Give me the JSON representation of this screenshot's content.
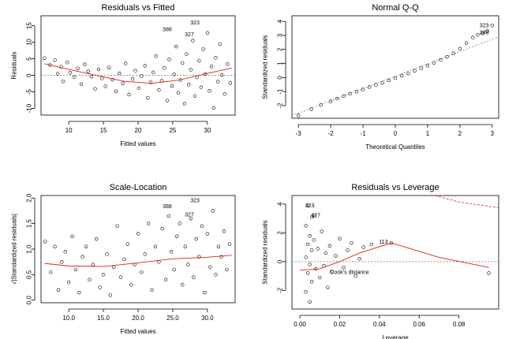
{
  "chart_data": [
    {
      "id": "residuals-vs-fitted",
      "type": "scatter",
      "title": "Residuals vs Fitted",
      "xlabel": "Fitted values",
      "ylabel": "Residuals",
      "xlim": [
        6,
        34
      ],
      "ylim": [
        -12,
        18
      ],
      "xticks": [
        10,
        15,
        20,
        25,
        30
      ],
      "yticks": [
        -10,
        -5,
        0,
        5,
        10,
        15
      ],
      "points": [
        [
          6.5,
          5.2
        ],
        [
          7.3,
          3.1
        ],
        [
          8.0,
          4.6
        ],
        [
          8.4,
          0.5
        ],
        [
          8.9,
          2.6
        ],
        [
          9.2,
          -1.8
        ],
        [
          9.8,
          3.9
        ],
        [
          10.2,
          0.8
        ],
        [
          10.8,
          -0.5
        ],
        [
          11.3,
          2.1
        ],
        [
          11.8,
          -2.7
        ],
        [
          12.3,
          3.3
        ],
        [
          12.8,
          1.2
        ],
        [
          13.3,
          -0.4
        ],
        [
          13.8,
          -4.1
        ],
        [
          14.3,
          1.8
        ],
        [
          14.8,
          -0.9
        ],
        [
          15.3,
          -3.3
        ],
        [
          15.8,
          2.4
        ],
        [
          16.3,
          -1.3
        ],
        [
          16.8,
          -4.8
        ],
        [
          17.3,
          0.6
        ],
        [
          17.8,
          -2.4
        ],
        [
          18.2,
          3.6
        ],
        [
          18.7,
          -5.8
        ],
        [
          19.2,
          -1.1
        ],
        [
          19.6,
          1.4
        ],
        [
          20.1,
          -3.9
        ],
        [
          20.5,
          -0.2
        ],
        [
          21.0,
          2.9
        ],
        [
          21.4,
          -6.8
        ],
        [
          21.8,
          -2.1
        ],
        [
          22.2,
          0.9
        ],
        [
          22.6,
          5.8
        ],
        [
          23.0,
          -4.4
        ],
        [
          23.4,
          -1.6
        ],
        [
          23.8,
          2.2
        ],
        [
          24.2,
          -7.6
        ],
        [
          24.5,
          4.8
        ],
        [
          24.9,
          -3.2
        ],
        [
          25.2,
          0.3
        ],
        [
          25.5,
          8.7
        ],
        [
          25.8,
          -5.3
        ],
        [
          26.1,
          -1.4
        ],
        [
          26.4,
          3.8
        ],
        [
          26.7,
          -8.6
        ],
        [
          27.0,
          6.4
        ],
        [
          27.3,
          -2.8
        ],
        [
          27.6,
          1.7
        ],
        [
          27.9,
          10.5
        ],
        [
          28.2,
          -6.2
        ],
        [
          28.5,
          -0.6
        ],
        [
          28.8,
          4.4
        ],
        [
          29.1,
          -3.6
        ],
        [
          29.4,
          7.9
        ],
        [
          29.7,
          0.4
        ],
        [
          30.0,
          12.8
        ],
        [
          30.3,
          -4.7
        ],
        [
          30.6,
          2.7
        ],
        [
          30.9,
          -9.8
        ],
        [
          31.2,
          5.3
        ],
        [
          31.5,
          -1.9
        ],
        [
          31.8,
          9.4
        ],
        [
          32.1,
          0.1
        ],
        [
          32.5,
          -5.6
        ],
        [
          32.9,
          3.4
        ],
        [
          33.3,
          -2.3
        ]
      ],
      "smooth": [
        [
          6.5,
          3.5
        ],
        [
          10,
          1.8
        ],
        [
          14,
          0.0
        ],
        [
          18,
          -1.8
        ],
        [
          22,
          -2.4
        ],
        [
          26,
          -1.4
        ],
        [
          30,
          0.6
        ],
        [
          33.5,
          2.2
        ]
      ],
      "annotations": [
        {
          "label": "388",
          "x": 24.2,
          "y": 13.8
        },
        {
          "label": "323",
          "x": 28.2,
          "y": 15.9
        },
        {
          "label": "327",
          "x": 27.4,
          "y": 12.3
        }
      ]
    },
    {
      "id": "normal-qq",
      "type": "scatter",
      "title": "Normal Q-Q",
      "xlabel": "Theoretical Quantiles",
      "ylabel": "Standardized residuals",
      "xlim": [
        -3.2,
        3.2
      ],
      "ylim": [
        -2.9,
        4.4
      ],
      "xticks": [
        -3,
        -2,
        -1,
        0,
        1,
        2,
        3
      ],
      "yticks": [
        -2,
        -1,
        0,
        1,
        2,
        3,
        4
      ],
      "points": [
        [
          -3.0,
          -2.7
        ],
        [
          -2.6,
          -2.25
        ],
        [
          -2.3,
          -1.95
        ],
        [
          -2.0,
          -1.7
        ],
        [
          -1.8,
          -1.5
        ],
        [
          -1.6,
          -1.32
        ],
        [
          -1.4,
          -1.15
        ],
        [
          -1.2,
          -1.0
        ],
        [
          -1.0,
          -0.85
        ],
        [
          -0.8,
          -0.68
        ],
        [
          -0.6,
          -0.52
        ],
        [
          -0.4,
          -0.36
        ],
        [
          -0.2,
          -0.2
        ],
        [
          0.0,
          -0.04
        ],
        [
          0.2,
          0.13
        ],
        [
          0.4,
          0.3
        ],
        [
          0.6,
          0.48
        ],
        [
          0.8,
          0.66
        ],
        [
          1.0,
          0.85
        ],
        [
          1.2,
          1.05
        ],
        [
          1.4,
          1.25
        ],
        [
          1.6,
          1.47
        ],
        [
          1.8,
          1.72
        ],
        [
          2.0,
          2.05
        ],
        [
          2.2,
          2.45
        ],
        [
          2.4,
          2.85
        ],
        [
          2.55,
          3.05
        ],
        [
          2.7,
          3.15
        ],
        [
          2.85,
          3.3
        ],
        [
          3.0,
          3.7
        ]
      ],
      "reference": [
        [
          -3.2,
          -2.7
        ],
        [
          3.2,
          2.9
        ]
      ],
      "annotations": [
        {
          "label": "323",
          "x": 2.75,
          "y": 3.7
        },
        {
          "label": "388",
          "x": 2.75,
          "y": 3.2
        }
      ]
    },
    {
      "id": "scale-location",
      "type": "scatter",
      "title": "Scale-Location",
      "xlabel": "Fitted values",
      "ylabel": "√|Standardized residuals|",
      "xlim": [
        6,
        34
      ],
      "ylim": [
        -0.05,
        2.05
      ],
      "xticks": [
        10,
        15,
        20,
        25,
        30
      ],
      "yticks": [
        0.0,
        0.5,
        1.0,
        1.5,
        2.0
      ],
      "points": [
        [
          6.6,
          1.15
        ],
        [
          7.4,
          0.55
        ],
        [
          8.0,
          1.05
        ],
        [
          8.5,
          0.2
        ],
        [
          9.0,
          0.75
        ],
        [
          9.5,
          0.95
        ],
        [
          10.0,
          0.35
        ],
        [
          10.5,
          1.25
        ],
        [
          11.0,
          0.6
        ],
        [
          11.5,
          0.15
        ],
        [
          12.0,
          0.85
        ],
        [
          12.5,
          1.05
        ],
        [
          13.0,
          0.4
        ],
        [
          13.5,
          0.7
        ],
        [
          14.0,
          1.2
        ],
        [
          14.5,
          0.25
        ],
        [
          15.0,
          0.5
        ],
        [
          15.5,
          0.9
        ],
        [
          16.0,
          0.1
        ],
        [
          16.5,
          0.65
        ],
        [
          17.0,
          1.45
        ],
        [
          17.5,
          0.45
        ],
        [
          18.0,
          0.8
        ],
        [
          18.5,
          1.1
        ],
        [
          19.0,
          0.3
        ],
        [
          19.5,
          0.7
        ],
        [
          20.0,
          1.3
        ],
        [
          20.5,
          0.55
        ],
        [
          21.0,
          0.9
        ],
        [
          21.5,
          1.5
        ],
        [
          22.0,
          0.2
        ],
        [
          22.5,
          1.05
        ],
        [
          23.0,
          0.75
        ],
        [
          23.5,
          1.4
        ],
        [
          24.0,
          0.4
        ],
        [
          24.4,
          1.65
        ],
        [
          24.8,
          0.95
        ],
        [
          25.2,
          0.6
        ],
        [
          25.6,
          1.25
        ],
        [
          26.0,
          1.5
        ],
        [
          26.4,
          0.3
        ],
        [
          26.8,
          1.05
        ],
        [
          27.2,
          0.7
        ],
        [
          27.6,
          1.6
        ],
        [
          28.0,
          0.45
        ],
        [
          28.4,
          1.2
        ],
        [
          28.8,
          0.85
        ],
        [
          29.2,
          1.45
        ],
        [
          29.6,
          0.15
        ],
        [
          30.0,
          1.3
        ],
        [
          30.4,
          0.65
        ],
        [
          30.8,
          1.75
        ],
        [
          31.2,
          0.5
        ],
        [
          31.6,
          1.05
        ],
        [
          32.0,
          0.85
        ],
        [
          32.4,
          1.35
        ],
        [
          32.8,
          0.6
        ],
        [
          33.2,
          1.1
        ]
      ],
      "smooth": [
        [
          6.5,
          0.72
        ],
        [
          10,
          0.67
        ],
        [
          15,
          0.66
        ],
        [
          20,
          0.73
        ],
        [
          25,
          0.81
        ],
        [
          30,
          0.84
        ],
        [
          33.5,
          0.88
        ]
      ],
      "annotations": [
        {
          "label": "388",
          "x": 24.2,
          "y": 1.83
        },
        {
          "label": "323",
          "x": 28.2,
          "y": 1.95
        },
        {
          "label": "327",
          "x": 27.4,
          "y": 1.67
        }
      ]
    },
    {
      "id": "residuals-vs-leverage",
      "type": "scatter",
      "title": "Residuals vs Leverage",
      "xlabel": "Leverage",
      "ylabel": "Standardized residuals",
      "xlim": [
        -0.004,
        0.1
      ],
      "ylim": [
        -3.3,
        4.6
      ],
      "xticks": [
        0.0,
        0.02,
        0.04,
        0.06,
        0.08
      ],
      "yticks": [
        -2,
        0,
        2,
        4
      ],
      "points": [
        [
          0.004,
          3.9
        ],
        [
          0.006,
          3.1
        ],
        [
          0.007,
          3.2
        ],
        [
          0.003,
          2.5
        ],
        [
          0.005,
          1.8
        ],
        [
          0.004,
          1.2
        ],
        [
          0.006,
          0.8
        ],
        [
          0.003,
          0.3
        ],
        [
          0.005,
          -0.2
        ],
        [
          0.004,
          -0.8
        ],
        [
          0.006,
          -1.4
        ],
        [
          0.003,
          -2.1
        ],
        [
          0.005,
          -2.8
        ],
        [
          0.007,
          1.5
        ],
        [
          0.008,
          -0.5
        ],
        [
          0.009,
          0.9
        ],
        [
          0.01,
          -1.1
        ],
        [
          0.011,
          2.1
        ],
        [
          0.012,
          -0.3
        ],
        [
          0.013,
          0.6
        ],
        [
          0.014,
          -1.8
        ],
        [
          0.015,
          1.1
        ],
        [
          0.016,
          -0.7
        ],
        [
          0.018,
          0.4
        ],
        [
          0.02,
          1.6
        ],
        [
          0.022,
          -0.4
        ],
        [
          0.024,
          0.8
        ],
        [
          0.026,
          1.3
        ],
        [
          0.028,
          -1.0
        ],
        [
          0.03,
          0.2
        ],
        [
          0.032,
          1.0
        ],
        [
          0.036,
          1.2
        ],
        [
          0.046,
          1.3
        ],
        [
          0.095,
          -0.8
        ]
      ],
      "smooth": [
        [
          0.0,
          -0.6
        ],
        [
          0.01,
          -0.5
        ],
        [
          0.02,
          0.0
        ],
        [
          0.03,
          0.6
        ],
        [
          0.046,
          1.3
        ],
        [
          0.07,
          0.3
        ],
        [
          0.095,
          -0.4
        ]
      ],
      "cooks_curve": [
        [
          0.068,
          4.6
        ],
        [
          0.08,
          4.15
        ],
        [
          0.1,
          3.75
        ]
      ],
      "annotations": [
        {
          "label": "327",
          "x": 0.008,
          "y": 3.2
        },
        {
          "label": "323",
          "x": 0.005,
          "y": 3.9
        },
        {
          "label": "113",
          "x": 0.042,
          "y": 1.35
        },
        {
          "label": "Cook's distance",
          "x": 0.025,
          "y": -0.75
        }
      ]
    }
  ]
}
